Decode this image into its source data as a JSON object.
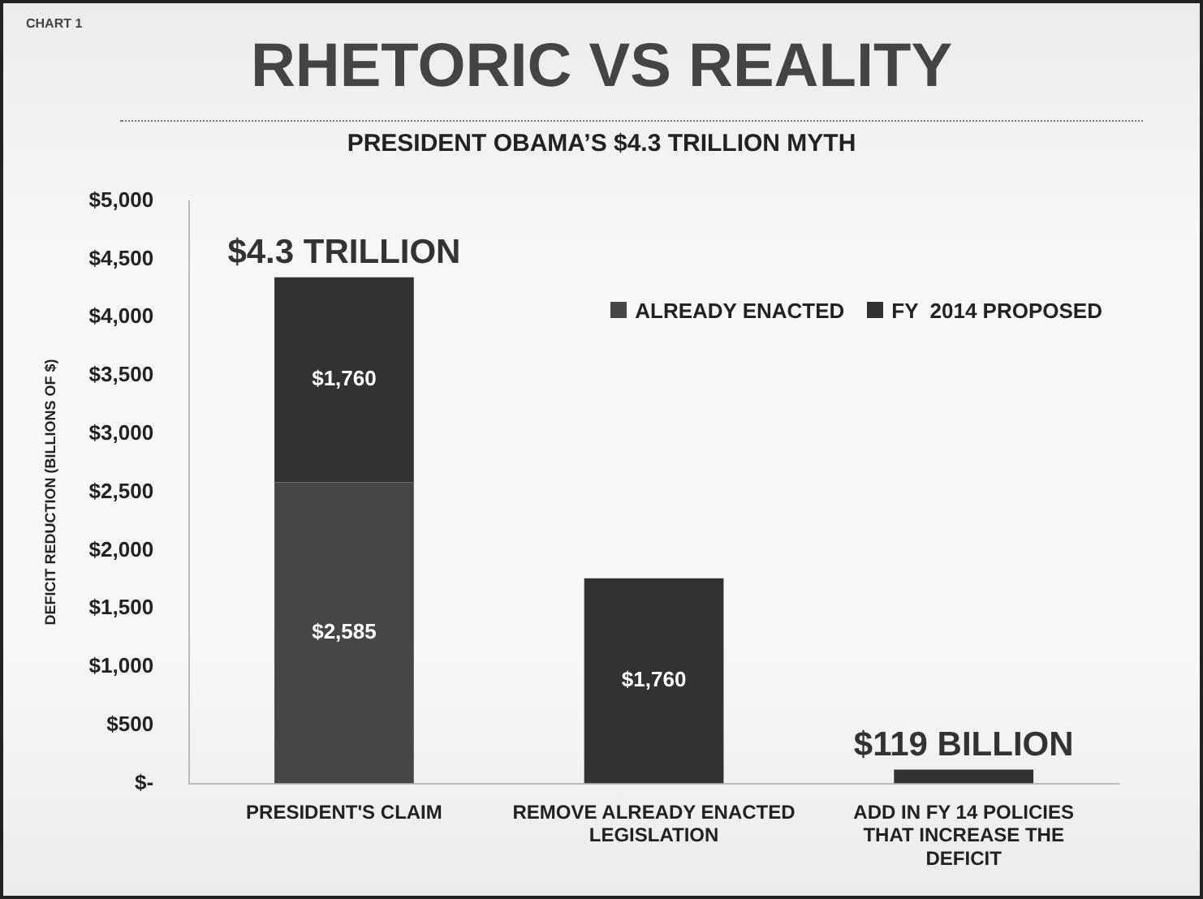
{
  "chart_data": {
    "type": "bar",
    "stacked": true,
    "title": "RHETORIC VS REALITY",
    "subtitle": "PRESIDENT OBAMA’S $4.3 TRILLION MYTH",
    "ylabel": "DEFICIT REDUCTION (BILLIONS OF $)",
    "categories": [
      "PRESIDENT'S CLAIM",
      "REMOVE ALREADY ENACTED LEGISLATION",
      "ADD IN FY 14 POLICIES THAT INCREASE THE DEFICIT"
    ],
    "series": [
      {
        "name": "ALREADY ENACTED",
        "color": "#464646",
        "values": [
          2585,
          null,
          null
        ],
        "value_labels": [
          "$2,585",
          null,
          null
        ]
      },
      {
        "name": "FY  2014 PROPOSED",
        "color": "#323232",
        "values": [
          1760,
          1760,
          119
        ],
        "value_labels": [
          "$1,760",
          "$1,760",
          null
        ]
      }
    ],
    "ylim": [
      0,
      5000
    ],
    "yticks": [
      {
        "value": 0,
        "label": "$-"
      },
      {
        "value": 500,
        "label": "$500"
      },
      {
        "value": 1000,
        "label": "$1,000"
      },
      {
        "value": 1500,
        "label": "$1,500"
      },
      {
        "value": 2000,
        "label": "$2,000"
      },
      {
        "value": 2500,
        "label": "$2,500"
      },
      {
        "value": 3000,
        "label": "$3,000"
      },
      {
        "value": 3500,
        "label": "$3,500"
      },
      {
        "value": 4000,
        "label": "$4,000"
      },
      {
        "value": 4500,
        "label": "$4,500"
      },
      {
        "value": 5000,
        "label": "$5,000"
      }
    ],
    "grid": false,
    "legend": "top right",
    "annotations": [
      "CHART 1",
      {
        "text": "$4.3 TRILLION",
        "x": "PRESIDENT'S CLAIM",
        "y": 4345
      },
      {
        "text": "$119 BILLION",
        "x": "ADD IN FY 14 POLICIES THAT INCREASE THE DEFICIT",
        "y": 119
      }
    ]
  }
}
